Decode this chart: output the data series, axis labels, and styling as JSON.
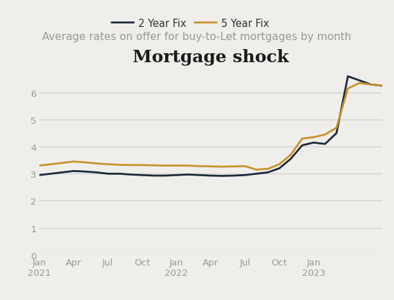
{
  "title": "Mortgage shock",
  "subtitle": "Average rates on offer for buy-to-Let mortgages by month",
  "background_color": "#f0eeeb",
  "plot_bg_color": "#f0eeeb",
  "two_year_fix": {
    "label": "2 Year Fix",
    "color": "#1c2b3a",
    "values": [
      2.95,
      3.0,
      3.05,
      3.1,
      3.08,
      3.05,
      3.0,
      3.0,
      2.97,
      2.95,
      2.93,
      2.93,
      2.95,
      2.97,
      2.95,
      2.93,
      2.92,
      2.93,
      2.95,
      3.0,
      3.05,
      3.2,
      3.55,
      4.05,
      4.15
    ]
  },
  "five_year_fix": {
    "label": "5 Year Fix",
    "color": "#c8922a",
    "values": [
      3.3,
      3.35,
      3.4,
      3.45,
      3.42,
      3.38,
      3.35,
      3.33,
      3.32,
      3.32,
      3.31,
      3.3,
      3.3,
      3.3,
      3.28,
      3.27,
      3.26,
      3.27,
      3.28,
      3.15,
      3.18,
      3.35,
      3.7,
      4.3,
      4.35
    ]
  },
  "two_year_extra": [
    4.1,
    4.5,
    6.6,
    6.45,
    6.3,
    6.25
  ],
  "five_year_extra": [
    4.45,
    4.7,
    6.15,
    6.35,
    6.3,
    6.25
  ],
  "x_tick_positions": [
    0,
    3,
    6,
    9,
    12,
    15,
    18,
    21,
    24
  ],
  "x_tick_labels": [
    "Jan\n2021",
    "Apr",
    "Jul",
    "Oct",
    "Jan\n2022",
    "Apr",
    "Jul",
    "Oct",
    "Jan\n2023"
  ],
  "ylim": [
    0,
    7
  ],
  "yticks": [
    0,
    1,
    2,
    3,
    4,
    5,
    6
  ],
  "grid_color": "#cccccc",
  "title_fontsize": 18,
  "subtitle_fontsize": 11,
  "legend_fontsize": 10.5,
  "tick_fontsize": 9.5,
  "tick_color": "#999999",
  "line_width": 2.0
}
